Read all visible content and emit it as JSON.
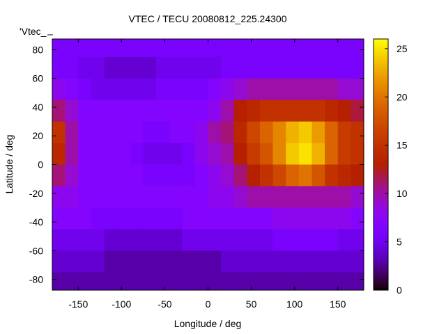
{
  "chart_data": {
    "type": "heatmap",
    "title": "VTEC / TECU 20080812_225.24300",
    "xlabel": "Longitude / deg",
    "ylabel": "Latitude / deg",
    "legend_label": "'Vtec_",
    "legend_placement": "top-left",
    "xlim": [
      -180,
      180
    ],
    "ylim": [
      -87.5,
      87.5
    ],
    "xticks": [
      -150,
      -100,
      -50,
      0,
      50,
      100,
      150
    ],
    "yticks": [
      -80,
      -60,
      -40,
      -20,
      0,
      20,
      40,
      60,
      80
    ],
    "colorbar": {
      "range": [
        0,
        26
      ],
      "ticks": [
        0,
        5,
        10,
        15,
        20,
        25
      ],
      "palette": "black-purple-red-orange-yellow"
    },
    "overlay": "coastlines",
    "overlay_color": "#00c0ff",
    "lon_centers": [
      -172.5,
      -157.5,
      -142.5,
      -127.5,
      -112.5,
      -97.5,
      -82.5,
      -67.5,
      -52.5,
      -37.5,
      -22.5,
      -7.5,
      7.5,
      22.5,
      37.5,
      52.5,
      67.5,
      82.5,
      97.5,
      112.5,
      127.5,
      142.5,
      157.5,
      172.5
    ],
    "lat_centers": [
      82.5,
      67.5,
      52.5,
      37.5,
      22.5,
      7.5,
      -7.5,
      -22.5,
      -37.5,
      -52.5,
      -67.5,
      -82.5
    ],
    "cell_size_deg": 15,
    "values": [
      [
        6,
        6,
        6,
        6,
        6,
        6,
        6,
        6,
        6,
        6,
        6,
        6,
        6,
        6,
        6,
        6,
        6,
        6,
        6,
        6,
        6,
        6,
        6,
        6
      ],
      [
        6,
        6,
        5,
        5,
        4,
        4,
        4,
        4,
        5,
        5,
        5,
        5,
        5,
        6,
        6,
        6,
        6,
        6,
        6,
        6,
        6,
        6,
        6,
        6
      ],
      [
        8,
        7,
        6,
        5,
        5,
        5,
        5,
        5,
        6,
        6,
        6,
        6,
        7,
        8,
        9,
        10,
        10,
        10,
        10,
        10,
        10,
        10,
        9,
        9
      ],
      [
        11,
        9,
        7,
        7,
        7,
        7,
        7,
        7,
        7,
        7,
        7,
        7,
        8,
        10,
        13,
        14,
        15,
        15,
        15,
        15,
        15,
        14,
        13,
        12
      ],
      [
        15,
        10,
        7,
        7,
        7,
        7,
        7,
        6,
        6,
        7,
        7,
        8,
        10,
        11,
        14,
        17,
        19,
        21,
        23,
        24,
        22,
        19,
        16,
        15
      ],
      [
        14,
        10,
        7,
        7,
        7,
        7,
        6,
        5,
        5,
        5,
        6,
        8,
        9,
        10,
        13,
        16,
        18,
        21,
        24,
        25,
        23,
        19,
        16,
        15
      ],
      [
        11,
        9,
        7,
        7,
        7,
        7,
        7,
        6,
        6,
        6,
        6,
        7,
        8,
        9,
        11,
        13,
        15,
        17,
        19,
        20,
        18,
        15,
        14,
        13
      ],
      [
        8,
        8,
        7,
        7,
        7,
        7,
        7,
        7,
        7,
        7,
        7,
        7,
        8,
        8,
        9,
        10,
        10,
        10,
        10,
        10,
        10,
        10,
        10,
        9
      ],
      [
        7,
        7,
        7,
        6,
        6,
        6,
        6,
        6,
        6,
        6,
        7,
        7,
        7,
        7,
        7,
        7,
        7,
        8,
        8,
        8,
        8,
        8,
        8,
        7
      ],
      [
        5,
        5,
        5,
        5,
        4,
        4,
        4,
        4,
        4,
        4,
        5,
        5,
        5,
        5,
        5,
        5,
        5,
        6,
        6,
        6,
        6,
        6,
        5,
        5
      ],
      [
        4,
        4,
        4,
        4,
        3,
        3,
        3,
        3,
        3,
        3,
        3,
        3,
        3,
        4,
        4,
        4,
        4,
        4,
        4,
        4,
        4,
        4,
        4,
        4
      ],
      [
        3,
        3,
        3,
        3,
        3,
        3,
        3,
        3,
        3,
        3,
        3,
        3,
        3,
        3,
        3,
        3,
        3,
        3,
        3,
        3,
        3,
        3,
        3,
        3
      ]
    ]
  }
}
